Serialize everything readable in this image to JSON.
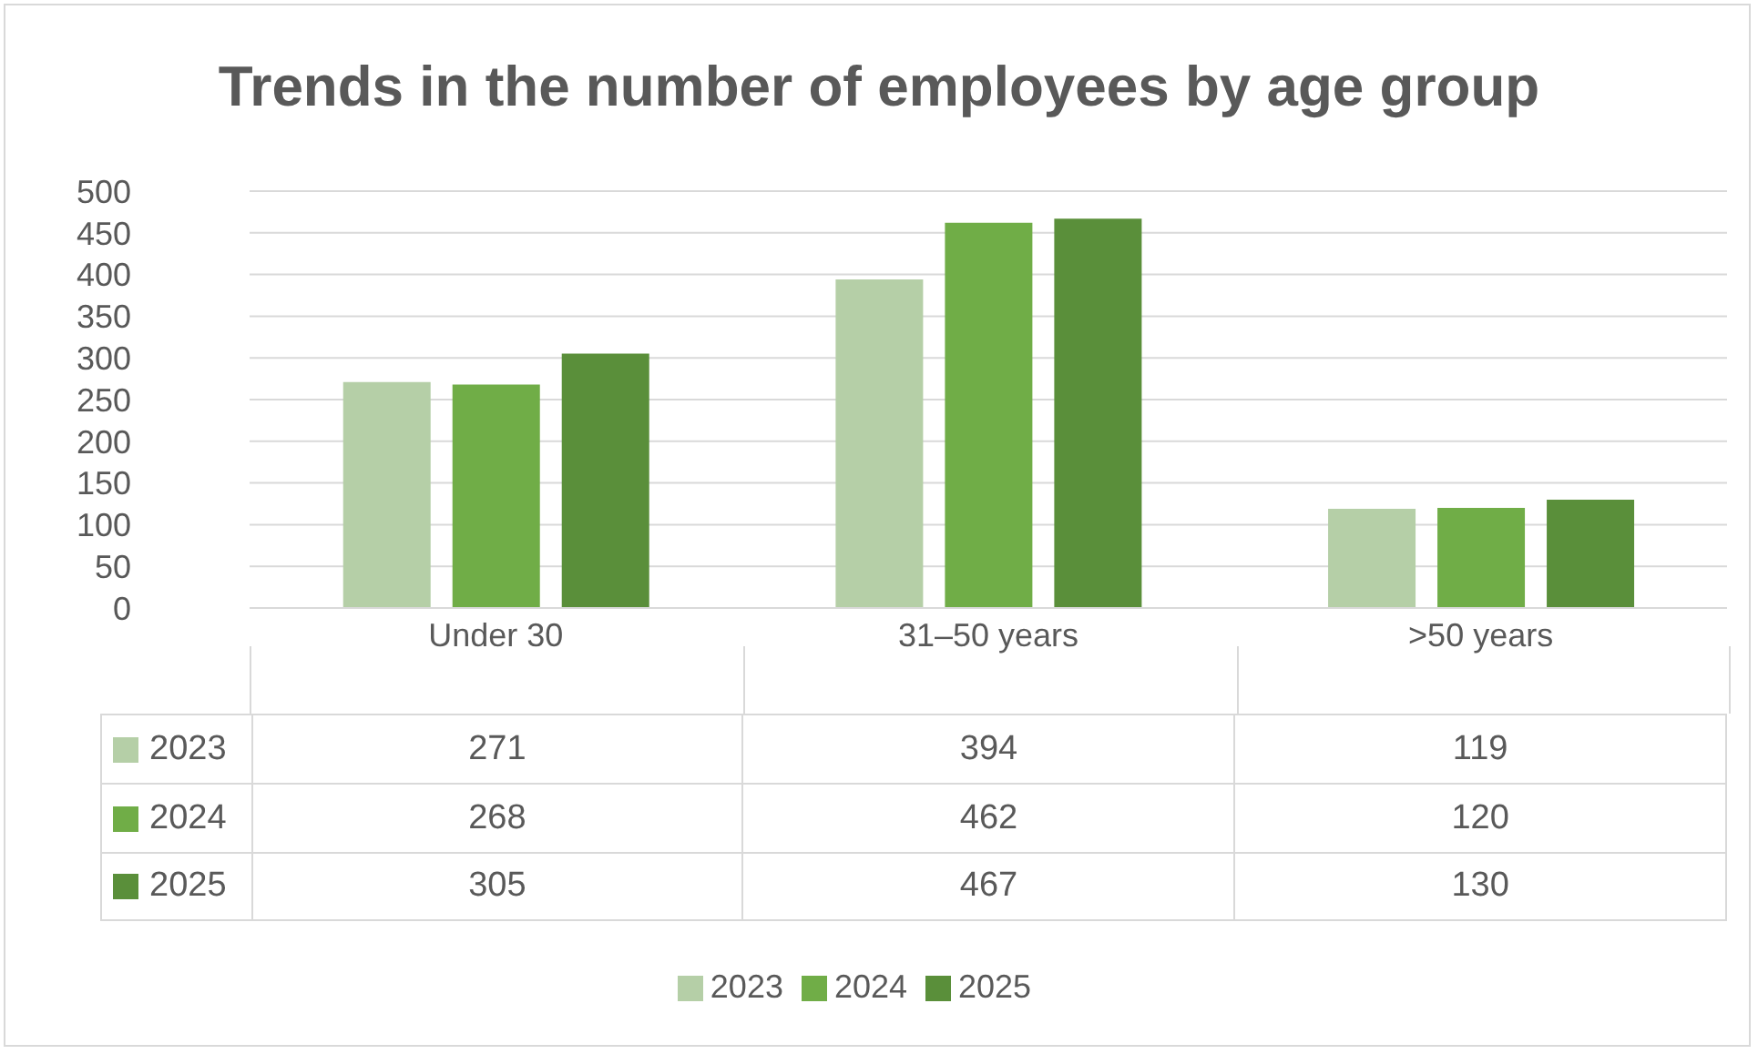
{
  "chart_data": {
    "type": "bar",
    "title": "Trends in the number of employees by age group",
    "categories": [
      "Under 30",
      "31–50 years",
      ">50 years"
    ],
    "series": [
      {
        "name": "2023",
        "color": "#b5cfa7",
        "values": [
          271,
          394,
          119
        ]
      },
      {
        "name": "2024",
        "color": "#70ad47",
        "values": [
          268,
          462,
          120
        ]
      },
      {
        "name": "2025",
        "color": "#5a8f3a",
        "values": [
          305,
          467,
          130
        ]
      }
    ],
    "ylim": [
      0,
      500
    ],
    "yticks": [
      0,
      50,
      100,
      150,
      200,
      250,
      300,
      350,
      400,
      450,
      500
    ],
    "grid": "y",
    "legend": "bottom",
    "data_labels": true
  }
}
